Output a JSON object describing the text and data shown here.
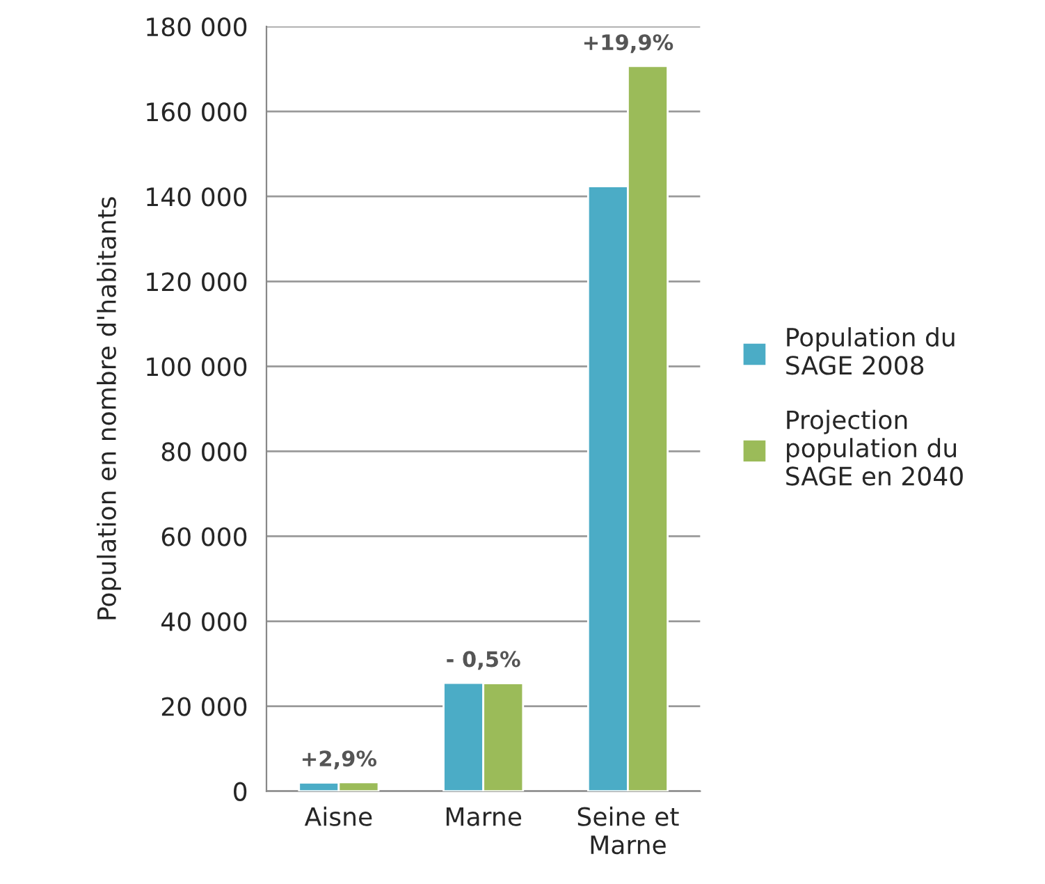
{
  "chart_data": {
    "type": "bar",
    "ylabel": "Population en nombre d'habitants",
    "categories": [
      "Aisne",
      "Marne",
      "Seine et\nMarne"
    ],
    "series": [
      {
        "name": "Population du\nSAGE 2008",
        "color": "#4bacc6",
        "values": [
          2000,
          25500,
          142400
        ]
      },
      {
        "name": "Projection\npopulation du\nSAGE en 2040",
        "color": "#9bbb59",
        "values": [
          2100,
          25400,
          170700
        ]
      }
    ],
    "ylim": [
      0,
      180000
    ],
    "yticks": [
      {
        "value": 0,
        "label": "0"
      },
      {
        "value": 20000,
        "label": "20 000"
      },
      {
        "value": 40000,
        "label": "40 000"
      },
      {
        "value": 60000,
        "label": "60 000"
      },
      {
        "value": 80000,
        "label": "80 000"
      },
      {
        "value": 100000,
        "label": "100 000"
      },
      {
        "value": 120000,
        "label": "120 000"
      },
      {
        "value": 140000,
        "label": "140 000"
      },
      {
        "value": 160000,
        "label": "160 000"
      },
      {
        "value": 180000,
        "label": "180 000"
      }
    ],
    "annotations": [
      "+2,9%",
      "- 0,5%",
      "+19,9%"
    ],
    "grid": "y",
    "legend": "right"
  }
}
